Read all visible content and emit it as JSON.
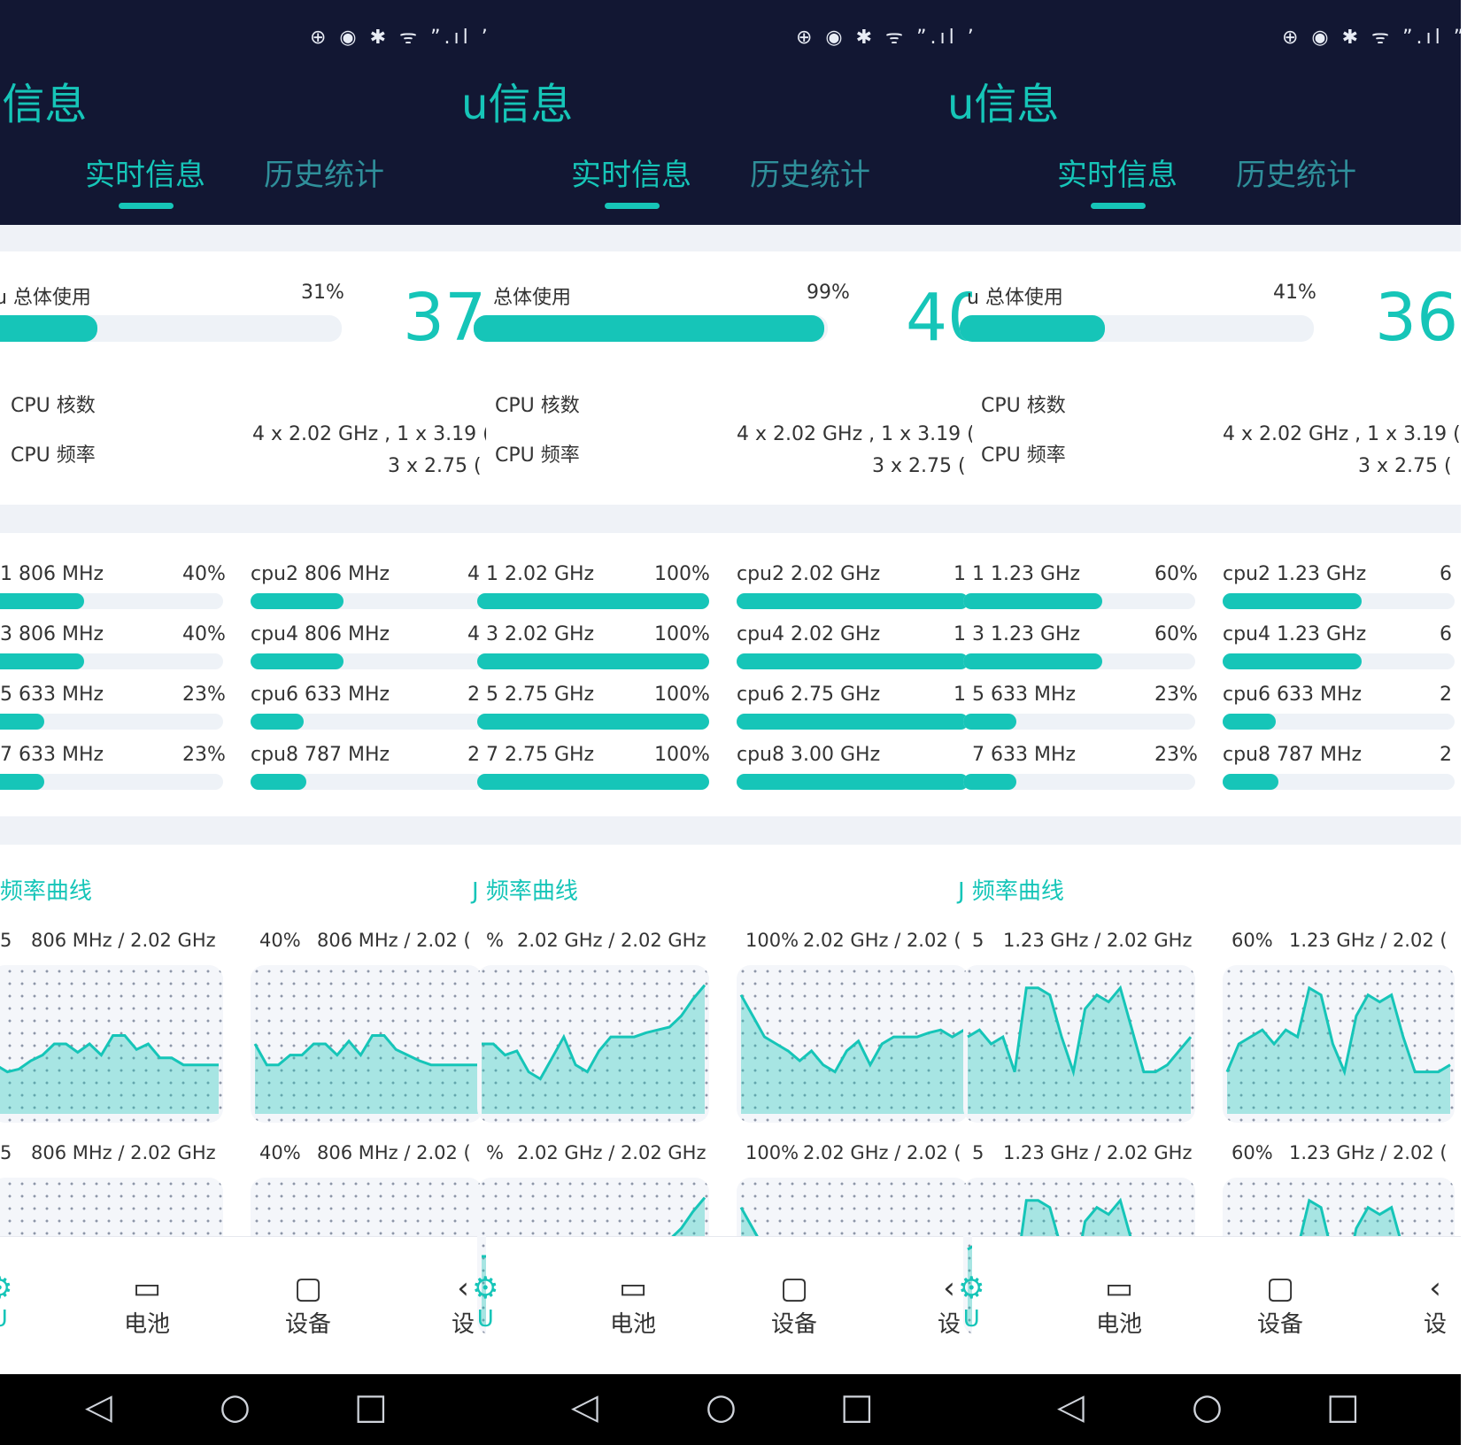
{
  "status_icons": "⊕ ◉ ✱ ᯤ ˮ.ıl ˮ",
  "app_title": "u信息",
  "tabs": {
    "active": "实时信息",
    "inactive": "历史统计"
  },
  "overall_label": "u 总体使用",
  "overall_label_mid": "总体使用",
  "cores_label": "CPU 核数",
  "freq_label": "CPU 频率",
  "freq_value_line1": "4 x 2.02 GHz , 1 x 3.19 (",
  "freq_value_line2": "3 x 2.75 (",
  "curve_title": "J 频率曲线",
  "bottom_nav": [
    {
      "icon": "⚙",
      "label": "U"
    },
    {
      "icon": "▭",
      "label": "电池"
    },
    {
      "icon": "▢",
      "label": "设备"
    },
    {
      "icon": "‹",
      "label": "设"
    }
  ],
  "accent_color": "#16c5b8",
  "header_color": "#121733",
  "panels": [
    {
      "overall_pct": "31%",
      "overall_fraction": 0.31,
      "temp": "37",
      "cores_left": [
        {
          "label": "1  806 MHz",
          "pct": "40%",
          "fraction": 0.4
        },
        {
          "label": "3  806 MHz",
          "pct": "40%",
          "fraction": 0.4
        },
        {
          "label": "5  633 MHz",
          "pct": "23%",
          "fraction": 0.23
        },
        {
          "label": "7  633 MHz",
          "pct": "23%",
          "fraction": 0.23
        }
      ],
      "cores_right": [
        {
          "label": "cpu2  806 MHz",
          "pct": "4",
          "fraction": 0.4
        },
        {
          "label": "cpu4  806 MHz",
          "pct": "4",
          "fraction": 0.4
        },
        {
          "label": "cpu6  633 MHz",
          "pct": "2",
          "fraction": 0.23
        },
        {
          "label": "cpu8  787 MHz",
          "pct": "2",
          "fraction": 0.24
        }
      ],
      "chart_labels": [
        {
          "left": "5",
          "right": "806 MHz / 2.02 GHz"
        },
        {
          "left": "40%",
          "right": "806 MHz / 2.02 ("
        },
        {
          "left": "5",
          "right": "806 MHz / 2.02 GHz"
        },
        {
          "left": "40%",
          "right": "806 MHz / 2.02 ("
        }
      ],
      "curves": [
        [
          0.35,
          0.3,
          0.32,
          0.38,
          0.42,
          0.5,
          0.5,
          0.44,
          0.5,
          0.42,
          0.56,
          0.56,
          0.46,
          0.5,
          0.4,
          0.4,
          0.35,
          0.35,
          0.35,
          0.35
        ],
        [
          0.5,
          0.35,
          0.35,
          0.42,
          0.42,
          0.5,
          0.5,
          0.42,
          0.52,
          0.42,
          0.56,
          0.56,
          0.46,
          0.42,
          0.38,
          0.35,
          0.35,
          0.35,
          0.35,
          0.35
        ]
      ]
    },
    {
      "overall_pct": "99%",
      "overall_fraction": 0.99,
      "temp": "40",
      "cores_left": [
        {
          "label": "1  2.02 GHz",
          "pct": "100%",
          "fraction": 1.0
        },
        {
          "label": "3  2.02 GHz",
          "pct": "100%",
          "fraction": 1.0
        },
        {
          "label": "5  2.75 GHz",
          "pct": "100%",
          "fraction": 1.0
        },
        {
          "label": "7  2.75 GHz",
          "pct": "100%",
          "fraction": 1.0
        }
      ],
      "cores_right": [
        {
          "label": "cpu2  2.02 GHz",
          "pct": "1",
          "fraction": 1.0
        },
        {
          "label": "cpu4  2.02 GHz",
          "pct": "1",
          "fraction": 1.0
        },
        {
          "label": "cpu6  2.75 GHz",
          "pct": "1",
          "fraction": 1.0
        },
        {
          "label": "cpu8  3.00 GHz",
          "pct": "",
          "fraction": 1.0
        }
      ],
      "chart_labels": [
        {
          "left": "%",
          "right": "2.02 GHz / 2.02 GHz"
        },
        {
          "left": "100%",
          "right": "2.02 GHz / 2.02 ("
        },
        {
          "left": "%",
          "right": "2.02 GHz / 2.02 GHz"
        },
        {
          "left": "100%",
          "right": "2.02 GHz / 2.02 ("
        }
      ],
      "curves": [
        [
          0.5,
          0.5,
          0.42,
          0.45,
          0.3,
          0.25,
          0.4,
          0.55,
          0.35,
          0.3,
          0.45,
          0.55,
          0.55,
          0.55,
          0.58,
          0.6,
          0.62,
          0.7,
          0.82,
          0.92
        ],
        [
          0.85,
          0.7,
          0.55,
          0.5,
          0.45,
          0.38,
          0.45,
          0.35,
          0.3,
          0.45,
          0.52,
          0.35,
          0.5,
          0.55,
          0.55,
          0.55,
          0.58,
          0.6,
          0.55,
          0.6
        ]
      ]
    },
    {
      "overall_pct": "41%",
      "overall_fraction": 0.41,
      "temp": "36",
      "cores_left": [
        {
          "label": "1  1.23 GHz",
          "pct": "60%",
          "fraction": 0.6
        },
        {
          "label": "3  1.23 GHz",
          "pct": "60%",
          "fraction": 0.6
        },
        {
          "label": "5  633 MHz",
          "pct": "23%",
          "fraction": 0.23
        },
        {
          "label": "7  633 MHz",
          "pct": "23%",
          "fraction": 0.23
        }
      ],
      "cores_right": [
        {
          "label": "cpu2  1.23 GHz",
          "pct": "6",
          "fraction": 0.6
        },
        {
          "label": "cpu4  1.23 GHz",
          "pct": "6",
          "fraction": 0.6
        },
        {
          "label": "cpu6  633 MHz",
          "pct": "2",
          "fraction": 0.23
        },
        {
          "label": "cpu8  787 MHz",
          "pct": "2",
          "fraction": 0.24
        }
      ],
      "chart_labels": [
        {
          "left": "5",
          "right": "1.23 GHz / 2.02 GHz"
        },
        {
          "left": "60%",
          "right": "1.23 GHz / 2.02 ("
        },
        {
          "left": "5",
          "right": "1.23 GHz / 2.02 GHz"
        },
        {
          "left": "60%",
          "right": "1.23 GHz / 2.02 ("
        }
      ],
      "curves": [
        [
          0.55,
          0.6,
          0.5,
          0.55,
          0.3,
          0.9,
          0.9,
          0.85,
          0.55,
          0.3,
          0.75,
          0.85,
          0.8,
          0.9,
          0.6,
          0.3,
          0.3,
          0.35,
          0.45,
          0.55
        ],
        [
          0.3,
          0.5,
          0.55,
          0.6,
          0.5,
          0.6,
          0.55,
          0.9,
          0.85,
          0.5,
          0.3,
          0.7,
          0.85,
          0.8,
          0.85,
          0.55,
          0.3,
          0.3,
          0.3,
          0.35
        ]
      ]
    }
  ]
}
